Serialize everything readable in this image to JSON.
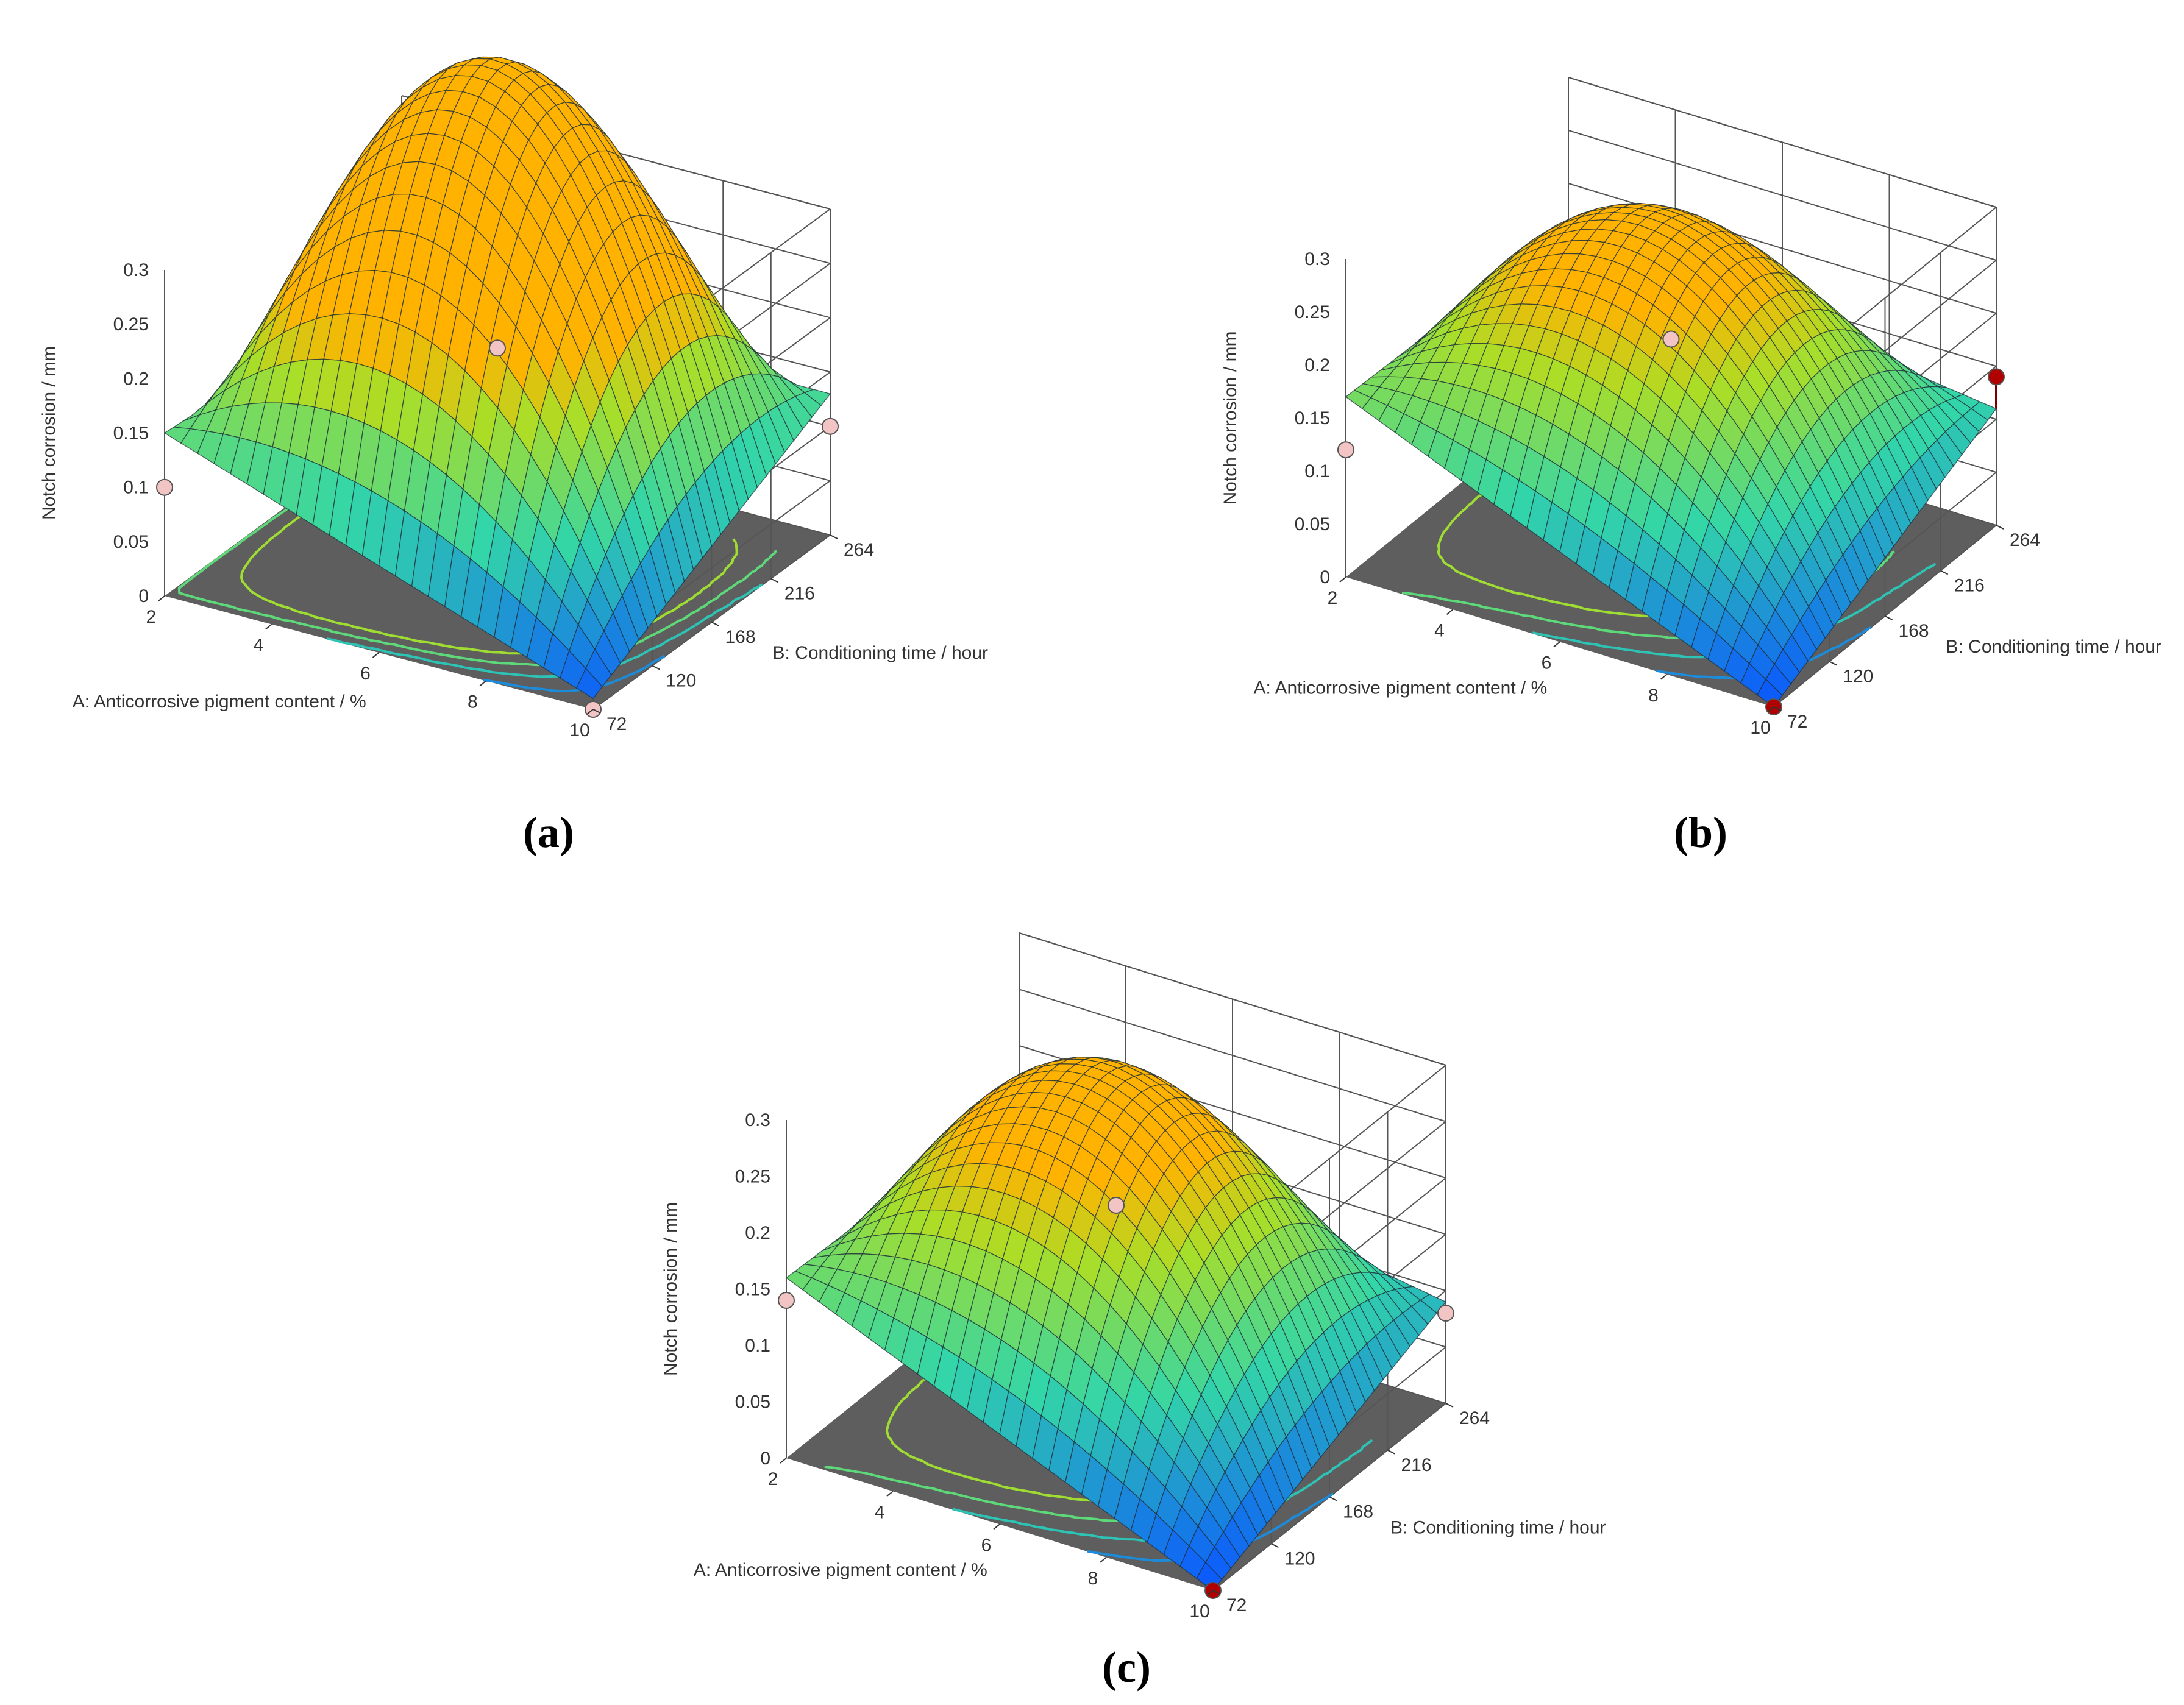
{
  "captions": [
    "(a)",
    "(b)",
    "(c)"
  ],
  "colors": {
    "background": "#ffffff",
    "floor": "#5e5e5e",
    "grid": "#555555",
    "surface_low": "#0a55ff",
    "surface_mid": "#33d6a8",
    "surface_high": "#ffb300",
    "design_point_above": "#b00000",
    "design_point_below": "#f3c4c4"
  },
  "chart_data": [
    {
      "panel": "(a)",
      "type": "surface3d",
      "zlabel": "Notch corrosion / mm",
      "xlabel": "A: Anticorrosive pigment content / %",
      "ylabel": "B: Conditioning time / hour",
      "x_ticks": [
        "2",
        "4",
        "6",
        "8",
        "10"
      ],
      "y_ticks": [
        "72",
        "120",
        "168",
        "216",
        "264"
      ],
      "z_ticks": [
        "0",
        "0.05",
        "0.1",
        "0.15",
        "0.2",
        "0.25",
        "0.3"
      ],
      "xlim": [
        2,
        10
      ],
      "ylim": [
        72,
        264
      ],
      "zlim": [
        0,
        0.3
      ],
      "surface_corners": {
        "A2_B72": 0.15,
        "A2_B264": 0.13,
        "A10_B72": 0.01,
        "A10_B264": 0.13
      },
      "surface_peak": {
        "x": 4.2,
        "y": 240,
        "z": 0.25
      },
      "design_points": [
        {
          "x": 6,
          "y": 168,
          "z": 0.2
        },
        {
          "x": 2,
          "y": 72,
          "z": 0.1
        },
        {
          "x": 10,
          "y": 264,
          "z": 0.1
        },
        {
          "x": 10,
          "y": 72,
          "z": 0.0
        }
      ]
    },
    {
      "panel": "(b)",
      "type": "surface3d",
      "zlabel": "Notch corrosion / mm",
      "xlabel": "A: Anticorrosive pigment content / %",
      "ylabel": "B: Conditioning time / hour",
      "x_ticks": [
        "2",
        "4",
        "6",
        "8",
        "10"
      ],
      "y_ticks": [
        "72",
        "120",
        "168",
        "216",
        "264"
      ],
      "z_ticks": [
        "0",
        "0.05",
        "0.1",
        "0.15",
        "0.2",
        "0.25",
        "0.3"
      ],
      "xlim": [
        2,
        10
      ],
      "ylim": [
        72,
        264
      ],
      "zlim": [
        0,
        0.3
      ],
      "surface_corners": {
        "A2_B72": 0.17,
        "A2_B264": 0.16,
        "A10_B72": 0.0,
        "A10_B264": 0.11
      },
      "surface_peak": {
        "x": 4.5,
        "y": 220,
        "z": 0.25
      },
      "design_points": [
        {
          "x": 6,
          "y": 168,
          "z": 0.2
        },
        {
          "x": 2,
          "y": 72,
          "z": 0.12
        },
        {
          "x": 10,
          "y": 264,
          "z": 0.14
        },
        {
          "x": 10,
          "y": 72,
          "z": 0.0
        }
      ]
    },
    {
      "panel": "(c)",
      "type": "surface3d",
      "zlabel": "Notch corrosion / mm",
      "xlabel": "A: Anticorrosive pigment content / %",
      "ylabel": "B: Conditioning time / hour",
      "x_ticks": [
        "2",
        "4",
        "6",
        "8",
        "10"
      ],
      "y_ticks": [
        "72",
        "120",
        "168",
        "216",
        "264"
      ],
      "z_ticks": [
        "0",
        "0.05",
        "0.1",
        "0.15",
        "0.2",
        "0.25",
        "0.3"
      ],
      "xlim": [
        2,
        10
      ],
      "ylim": [
        72,
        264
      ],
      "zlim": [
        0,
        0.3
      ],
      "surface_corners": {
        "A2_B72": 0.16,
        "A2_B264": 0.15,
        "A10_B72": 0.0,
        "A10_B264": 0.09
      },
      "surface_peak": {
        "x": 4.5,
        "y": 220,
        "z": 0.25
      },
      "design_points": [
        {
          "x": 6,
          "y": 168,
          "z": 0.2
        },
        {
          "x": 2,
          "y": 72,
          "z": 0.14
        },
        {
          "x": 10,
          "y": 264,
          "z": 0.08
        },
        {
          "x": 10,
          "y": 72,
          "z": 0.0
        }
      ]
    }
  ]
}
